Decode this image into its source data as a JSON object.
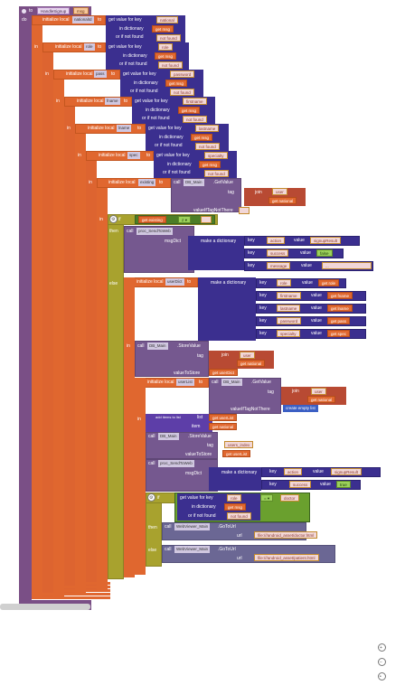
{
  "proc": {
    "to": "to",
    "name": "HandleSignup",
    "param": "msg",
    "do": "do"
  },
  "kw": {
    "initialize_local": "initialize local",
    "to": "to",
    "in": "in",
    "get_value_for_key": "get value for key",
    "in_dictionary": "in dictionary",
    "or_if_not_found": "or if not found",
    "get": "get",
    "call": "call",
    "tag": "tag",
    "valueIfTagNotThere": "valueIfTagNotThere",
    "join": "join",
    "if": "if",
    "then": "then",
    "else": "else",
    "make_a_dictionary": "make a dictionary",
    "key": "key",
    "value": "value",
    "valueToStore": "valueToStore",
    "url": "url",
    "item": "item",
    "true": "true",
    "false": "false",
    "eq": "=",
    "add_items_to_list": "add items to list",
    "list": "list",
    "create_empty_list": "create empty list",
    "not_found": "not found"
  },
  "vars": {
    "nationalId": "nationalId",
    "role": "role",
    "pass": "pass",
    "fname": "fname",
    "lname": "lname",
    "spec": "spec",
    "existing": "existing",
    "userDict": "userDict",
    "userList": "userList"
  },
  "keys": {
    "national": "national",
    "role": "role",
    "password": "password",
    "firstname": "firstname",
    "lastname": "lastname",
    "specialty": "specialty",
    "action": "action",
    "signupResult": "signupResult",
    "success": "success",
    "message": "message",
    "message_val": "...",
    "user": "user",
    "users_index": "users_index",
    "doctor": "doctor",
    "msg": "msg"
  },
  "components": {
    "db": "DB_Main",
    "getvalue": "GetValue",
    "storevalue": "StoreValue",
    "sendtoweb": "proc_SendToWeb",
    "webviewer": "WebViewer_Main",
    "gotourl": "GoToUrl",
    "tagName": "tagName",
    "msgDict": "msgDict"
  },
  "urls": {
    "doctor": "file:///android_asset/doctor.html",
    "patient": "file:///android_asset/patient.html"
  },
  "colors": {
    "procedure": "#7a4f86",
    "variable": "#e0672f",
    "control": "#a8a22e",
    "dictionary": "#3b2f8f",
    "text": "#f2d7d7",
    "logic": "#4c7d27"
  }
}
